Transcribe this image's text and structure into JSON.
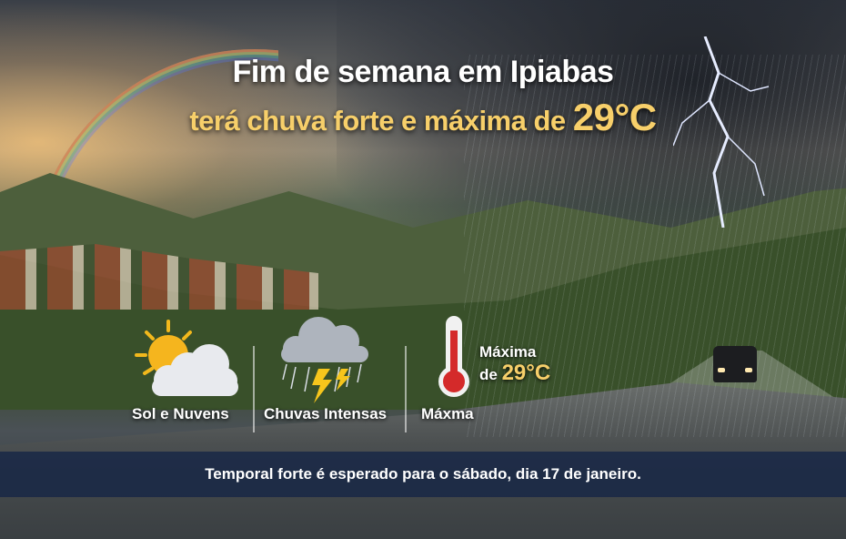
{
  "headline": {
    "line1": "Fim de semana em Ipiabas",
    "line2_prefix": "terá chuva forte e máxima de",
    "line2_temp": "29°C"
  },
  "forecast": [
    {
      "icon": "sun-cloud-icon",
      "label": "Sol e Nuvens"
    },
    {
      "icon": "storm-cloud-icon",
      "label": "Chuvas Intensas"
    },
    {
      "icon": "thermometer-icon",
      "label": "Máxma",
      "detail_line1": "Máxima",
      "detail_prefix": "de",
      "detail_temp": "29°C"
    }
  ],
  "banner": "Temporal forte é esperado para o sábado, dia 17 de janeiro.",
  "colors": {
    "accent": "#f7cf6a",
    "banner": "#16264a",
    "thermometer": "#d42a2a"
  }
}
